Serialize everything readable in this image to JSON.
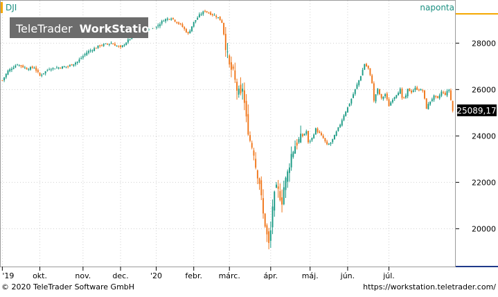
{
  "watermark": {
    "brand": "TeleTrader",
    "product": "WorkStation"
  },
  "symbol": "DJI",
  "interval": "naponta",
  "last_price_label": "25089,17",
  "footer": {
    "copyright": "© 2020 TeleTrader Software GmbH",
    "url": "https://workstation.teletrader.com/"
  },
  "colors": {
    "up": "#1a9a84",
    "down": "#f07518",
    "accent": "#f5a800",
    "price_label_bg": "#000000",
    "grid": "#cfcfcf",
    "right_axis_bottom": "#1f3a8a"
  },
  "chart_data": {
    "type": "candlestick",
    "title": "DJI",
    "ylim": [
      18400,
      29800
    ],
    "grid": true,
    "y_ticks": [
      {
        "value": 20000,
        "label": "20000"
      },
      {
        "value": 22000,
        "label": "22000"
      },
      {
        "value": 24000,
        "label": "24000"
      },
      {
        "value": 26000,
        "label": "26000"
      },
      {
        "value": 28000,
        "label": "28000"
      }
    ],
    "x_ticks": [
      {
        "index": 0,
        "label": "'19"
      },
      {
        "index": 20,
        "label": "okt."
      },
      {
        "index": 43,
        "label": "nov."
      },
      {
        "index": 63,
        "label": "dec."
      },
      {
        "index": 82,
        "label": "'20"
      },
      {
        "index": 102,
        "label": "febr."
      },
      {
        "index": 121,
        "label": "márc."
      },
      {
        "index": 143,
        "label": "ápr."
      },
      {
        "index": 164,
        "label": "máj."
      },
      {
        "index": 184,
        "label": "jún."
      },
      {
        "index": 206,
        "label": "júl."
      }
    ],
    "last_value": 25089.17,
    "anchors": [
      [
        0,
        26400
      ],
      [
        3,
        26800
      ],
      [
        8,
        27100
      ],
      [
        13,
        26900
      ],
      [
        17,
        26950
      ],
      [
        20,
        26600
      ],
      [
        25,
        26900
      ],
      [
        30,
        26950
      ],
      [
        35,
        27000
      ],
      [
        40,
        27200
      ],
      [
        45,
        27600
      ],
      [
        52,
        27900
      ],
      [
        58,
        28000
      ],
      [
        63,
        27800
      ],
      [
        68,
        28200
      ],
      [
        73,
        28400
      ],
      [
        78,
        28600
      ],
      [
        82,
        28700
      ],
      [
        86,
        29000
      ],
      [
        90,
        29100
      ],
      [
        93,
        28900
      ],
      [
        95,
        28800
      ],
      [
        99,
        28400
      ],
      [
        102,
        28900
      ],
      [
        105,
        29200
      ],
      [
        108,
        29400
      ],
      [
        110,
        29300
      ],
      [
        113,
        29200
      ],
      [
        115,
        29100
      ],
      [
        117,
        28900
      ],
      [
        119,
        27900
      ],
      [
        121,
        27000
      ],
      [
        123,
        26700
      ],
      [
        125,
        26000
      ],
      [
        127,
        25700
      ],
      [
        128,
        26100
      ],
      [
        130,
        24700
      ],
      [
        132,
        23800
      ],
      [
        134,
        23300
      ],
      [
        135,
        22700
      ],
      [
        137,
        22000
      ],
      [
        138,
        21300
      ],
      [
        139,
        20600
      ],
      [
        140,
        20200
      ],
      [
        141,
        19700
      ],
      [
        142,
        19300
      ],
      [
        143,
        19900
      ],
      [
        144,
        21000
      ],
      [
        145,
        21400
      ],
      [
        146,
        21700
      ],
      [
        147,
        21600
      ],
      [
        149,
        21200
      ],
      [
        150,
        21800
      ],
      [
        152,
        22400
      ],
      [
        154,
        23200
      ],
      [
        156,
        23600
      ],
      [
        158,
        23800
      ],
      [
        160,
        24000
      ],
      [
        162,
        24200
      ],
      [
        163,
        23700
      ],
      [
        165,
        23900
      ],
      [
        167,
        24300
      ],
      [
        169,
        24100
      ],
      [
        171,
        23900
      ],
      [
        173,
        23600
      ],
      [
        175,
        23700
      ],
      [
        177,
        24000
      ],
      [
        180,
        24500
      ],
      [
        182,
        24900
      ],
      [
        185,
        25400
      ],
      [
        187,
        25800
      ],
      [
        189,
        26200
      ],
      [
        191,
        26600
      ],
      [
        193,
        27100
      ],
      [
        195,
        26900
      ],
      [
        197,
        26300
      ],
      [
        198,
        25500
      ],
      [
        199,
        25800
      ],
      [
        200,
        26000
      ],
      [
        202,
        25600
      ],
      [
        204,
        25800
      ],
      [
        206,
        25300
      ],
      [
        208,
        25600
      ],
      [
        210,
        25800
      ],
      [
        212,
        26000
      ],
      [
        213,
        25600
      ],
      [
        215,
        25700
      ],
      [
        216,
        26000
      ],
      [
        218,
        25900
      ],
      [
        220,
        26050
      ],
      [
        222,
        26000
      ],
      [
        224,
        25950
      ],
      [
        226,
        25200
      ],
      [
        228,
        25500
      ],
      [
        230,
        25700
      ],
      [
        232,
        25600
      ],
      [
        234,
        25900
      ],
      [
        236,
        25800
      ],
      [
        238,
        26000
      ],
      [
        240,
        25089
      ]
    ]
  }
}
